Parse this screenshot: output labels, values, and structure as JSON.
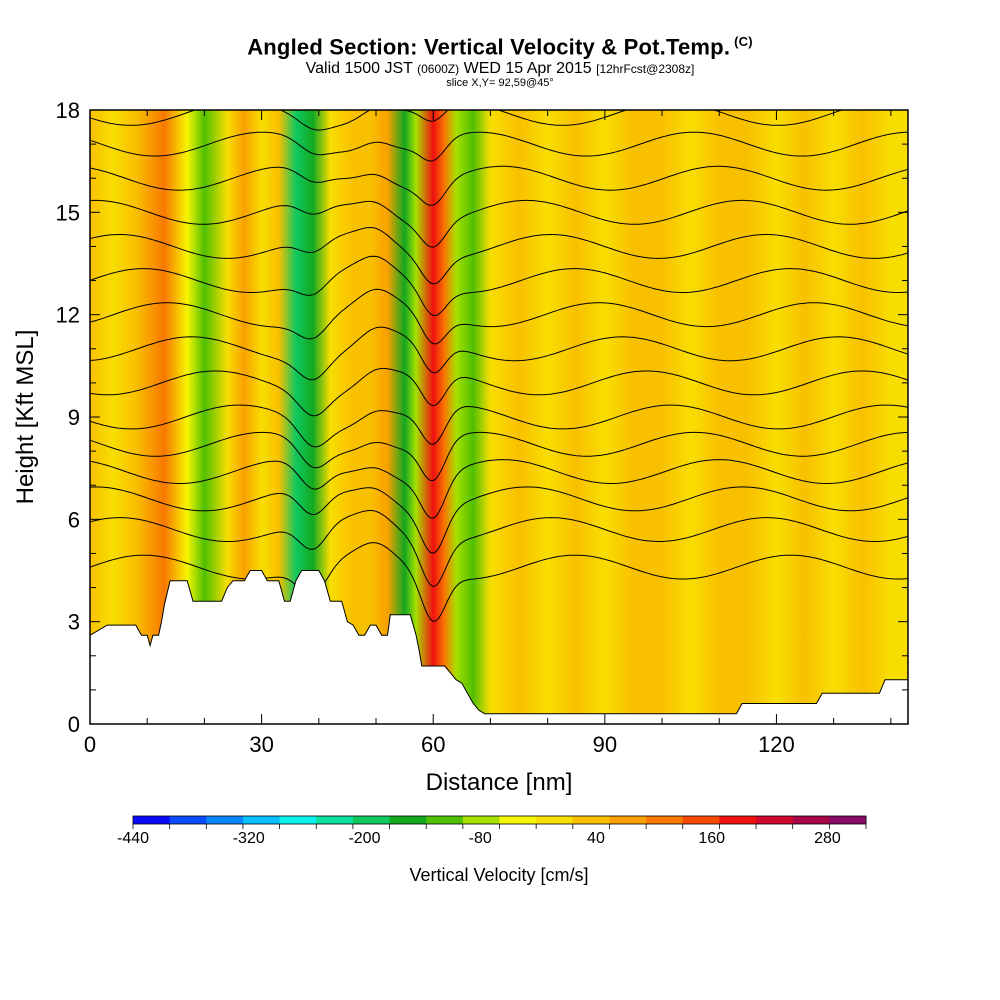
{
  "header": {
    "title": "Angled Section: Vertical Velocity & Pot.Temp.",
    "title_suffix": "(C)",
    "valid_prefix": "Valid 1500 JST",
    "valid_small": "(0600Z)",
    "valid_date": "WED 15 Apr 2015",
    "valid_fcst": "[12hrFcst@2308z]",
    "slice": "slice X,Y= 92,59@45°"
  },
  "chart_data": {
    "type": "heatmap",
    "xlabel": "Distance [nm]",
    "ylabel": "Height [Kft MSL]",
    "xlim": [
      0,
      143
    ],
    "ylim": [
      0,
      18
    ],
    "x_ticks": [
      0,
      30,
      60,
      90,
      120
    ],
    "y_ticks": [
      0,
      3,
      6,
      9,
      12,
      15,
      18
    ],
    "colorbar": {
      "title": "Vertical Velocity [cm/s]",
      "min": -440,
      "max": 320,
      "step": 40,
      "labels": [
        -440,
        -320,
        -200,
        -80,
        40,
        160,
        280
      ],
      "colors": [
        "#0a0aff",
        "#0b4cff",
        "#0a86ff",
        "#08c0ff",
        "#0ef2ef",
        "#0ee0a0",
        "#10c860",
        "#12a820",
        "#50c000",
        "#a8e000",
        "#f6f600",
        "#f8de00",
        "#f9c000",
        "#f9a000",
        "#f97800",
        "#f84a00",
        "#f01010",
        "#d0082e",
        "#a80848",
        "#8a0a6a"
      ]
    },
    "velocity_columns": [
      {
        "x": 0,
        "value": 40
      },
      {
        "x": 4,
        "value": 10
      },
      {
        "x": 8,
        "value": 60
      },
      {
        "x": 13,
        "value": 120
      },
      {
        "x": 17,
        "value": -20
      },
      {
        "x": 20,
        "value": -90
      },
      {
        "x": 24,
        "value": 20
      },
      {
        "x": 27,
        "value": 90
      },
      {
        "x": 30,
        "value": 30
      },
      {
        "x": 33,
        "value": 70
      },
      {
        "x": 36,
        "value": -190
      },
      {
        "x": 39,
        "value": -160
      },
      {
        "x": 42,
        "value": 20
      },
      {
        "x": 46,
        "value": 60
      },
      {
        "x": 49,
        "value": 40
      },
      {
        "x": 52,
        "value": 80
      },
      {
        "x": 55,
        "value": -160
      },
      {
        "x": 57,
        "value": -60
      },
      {
        "x": 60,
        "value": 200
      },
      {
        "x": 62,
        "value": 120
      },
      {
        "x": 64,
        "value": -60
      },
      {
        "x": 67,
        "value": -110
      },
      {
        "x": 70,
        "value": 10
      },
      {
        "x": 75,
        "value": 40
      },
      {
        "x": 80,
        "value": 20
      },
      {
        "x": 85,
        "value": 50
      },
      {
        "x": 90,
        "value": 10
      },
      {
        "x": 95,
        "value": 40
      },
      {
        "x": 100,
        "value": 50
      },
      {
        "x": 105,
        "value": 10
      },
      {
        "x": 110,
        "value": 40
      },
      {
        "x": 115,
        "value": 60
      },
      {
        "x": 120,
        "value": 30
      },
      {
        "x": 125,
        "value": 40
      },
      {
        "x": 130,
        "value": 20
      },
      {
        "x": 135,
        "value": 50
      },
      {
        "x": 140,
        "value": 30
      },
      {
        "x": 143,
        "value": 30
      }
    ],
    "terrain": [
      [
        0,
        2.6
      ],
      [
        3,
        2.9
      ],
      [
        8,
        2.9
      ],
      [
        9,
        2.6
      ],
      [
        10,
        2.6
      ],
      [
        10.5,
        2.3
      ],
      [
        11,
        2.6
      ],
      [
        12,
        2.6
      ],
      [
        12.5,
        3.0
      ],
      [
        13,
        3.5
      ],
      [
        14,
        4.2
      ],
      [
        17,
        4.2
      ],
      [
        18,
        3.6
      ],
      [
        19,
        3.6
      ],
      [
        23,
        3.6
      ],
      [
        24,
        4.0
      ],
      [
        25,
        4.2
      ],
      [
        27,
        4.2
      ],
      [
        28,
        4.5
      ],
      [
        30,
        4.5
      ],
      [
        31,
        4.2
      ],
      [
        33,
        4.2
      ],
      [
        34,
        3.6
      ],
      [
        35,
        3.6
      ],
      [
        36,
        4.2
      ],
      [
        37,
        4.5
      ],
      [
        40,
        4.5
      ],
      [
        41,
        4.2
      ],
      [
        42,
        3.6
      ],
      [
        44,
        3.6
      ],
      [
        45,
        3.0
      ],
      [
        46,
        2.9
      ],
      [
        47,
        2.6
      ],
      [
        48,
        2.6
      ],
      [
        49,
        2.9
      ],
      [
        50,
        2.9
      ],
      [
        51,
        2.6
      ],
      [
        52,
        2.6
      ],
      [
        52.5,
        3.2
      ],
      [
        56,
        3.2
      ],
      [
        57,
        2.6
      ],
      [
        57.5,
        2.2
      ],
      [
        58,
        1.7
      ],
      [
        60,
        1.7
      ],
      [
        61,
        1.7
      ],
      [
        62,
        1.7
      ],
      [
        63,
        1.5
      ],
      [
        64,
        1.3
      ],
      [
        65,
        1.2
      ],
      [
        66,
        0.9
      ],
      [
        67,
        0.6
      ],
      [
        68,
        0.4
      ],
      [
        69,
        0.3
      ],
      [
        113,
        0.3
      ],
      [
        114,
        0.6
      ],
      [
        127,
        0.6
      ],
      [
        128,
        0.9
      ],
      [
        138,
        0.9
      ],
      [
        139,
        1.3
      ],
      [
        143,
        1.3
      ]
    ],
    "theta_contours": [
      {
        "base": 4.6,
        "label": "",
        "label_x": -1
      },
      {
        "base": 5.7,
        "label": "",
        "label_x": -1
      },
      {
        "base": 6.6,
        "label": "",
        "label_x": -1
      },
      {
        "base": 7.4,
        "label": "",
        "label_x": -1
      },
      {
        "base": 8.2,
        "label": "",
        "label_x": -1
      },
      {
        "base": 9.0,
        "label": "",
        "label_x": -1
      },
      {
        "base": 10.0,
        "label": "",
        "label_x": -1
      },
      {
        "base": 11.0,
        "label": "",
        "label_x": -1
      },
      {
        "base": 12.0,
        "label": "",
        "label_x": -1
      },
      {
        "base": 13.0,
        "label": "",
        "label_x": -1
      },
      {
        "base": 14.0,
        "label": "",
        "label_x": -1
      },
      {
        "base": 15.0,
        "label": "",
        "label_x": -1
      },
      {
        "base": 16.0,
        "label": "",
        "label_x": -1
      },
      {
        "base": 17.0,
        "label": "",
        "label_x": -1
      },
      {
        "base": 17.9,
        "label": "",
        "label_x": -1
      }
    ]
  }
}
